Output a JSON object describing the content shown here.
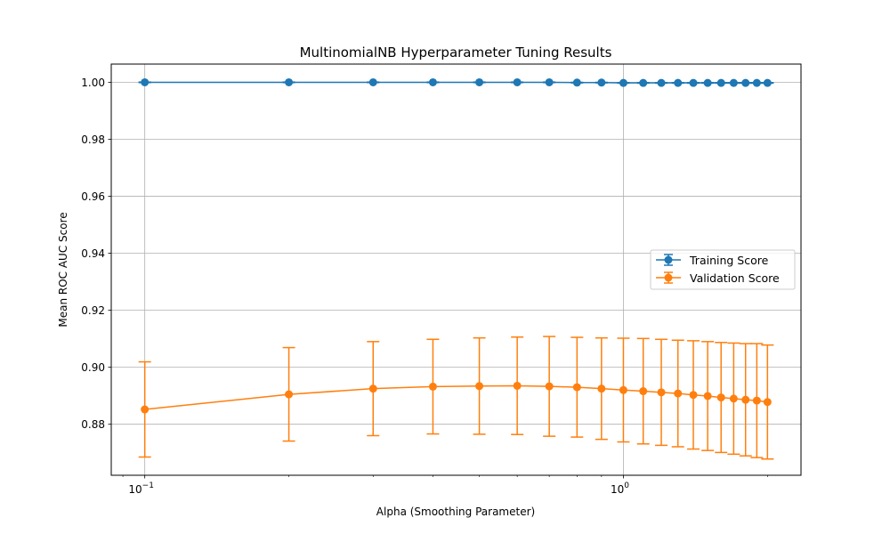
{
  "chart_data": {
    "type": "line",
    "title": "MultinomialNB Hyperparameter Tuning Results",
    "xlabel": "Alpha (Smoothing Parameter)",
    "ylabel": "Mean ROC AUC Score",
    "x_scale": "log",
    "x": [
      0.1,
      0.2,
      0.3,
      0.4,
      0.5,
      0.6,
      0.7,
      0.8,
      0.9,
      1.0,
      1.1,
      1.2,
      1.3,
      1.4,
      1.5,
      1.6,
      1.7,
      1.8,
      1.9,
      2.0
    ],
    "x_ticks": [
      {
        "value": 0.1,
        "base": "10",
        "exp": "−1"
      },
      {
        "value": 1,
        "base": "10",
        "exp": "0"
      }
    ],
    "ylim": [
      0.8621,
      1.0064
    ],
    "y_ticks": [
      "0.88",
      "0.90",
      "0.92",
      "0.94",
      "0.96",
      "0.98",
      "1.00"
    ],
    "grid": true,
    "legend_position": "center-right",
    "series": [
      {
        "name": "Training Score",
        "color": "#1f77b4",
        "values": [
          1.0,
          1.0,
          1.0,
          1.0,
          1.0,
          1.0,
          1.0,
          0.9999,
          0.9999,
          0.9998,
          0.9998,
          0.9998,
          0.9998,
          0.9998,
          0.9998,
          0.9998,
          0.9998,
          0.9998,
          0.9998,
          0.9998
        ],
        "errors": [
          0.0001,
          0.0001,
          0.0001,
          0.0001,
          0.0001,
          0.0001,
          0.0001,
          0.0001,
          0.0001,
          0.0001,
          0.0001,
          0.0001,
          0.0001,
          0.0001,
          0.0001,
          0.0001,
          0.0001,
          0.0001,
          0.0001,
          0.0001
        ]
      },
      {
        "name": "Validation Score",
        "color": "#ff7f0e",
        "values": [
          0.8852,
          0.8905,
          0.8925,
          0.8932,
          0.8934,
          0.8935,
          0.8933,
          0.893,
          0.8925,
          0.892,
          0.8916,
          0.8912,
          0.8908,
          0.8903,
          0.8899,
          0.8894,
          0.889,
          0.8886,
          0.8883,
          0.8878
        ],
        "errors": [
          0.0167,
          0.0164,
          0.0165,
          0.0166,
          0.0169,
          0.0171,
          0.0175,
          0.0175,
          0.0178,
          0.0182,
          0.0185,
          0.0186,
          0.0187,
          0.019,
          0.0191,
          0.0193,
          0.0195,
          0.0197,
          0.02,
          0.02
        ]
      }
    ]
  }
}
